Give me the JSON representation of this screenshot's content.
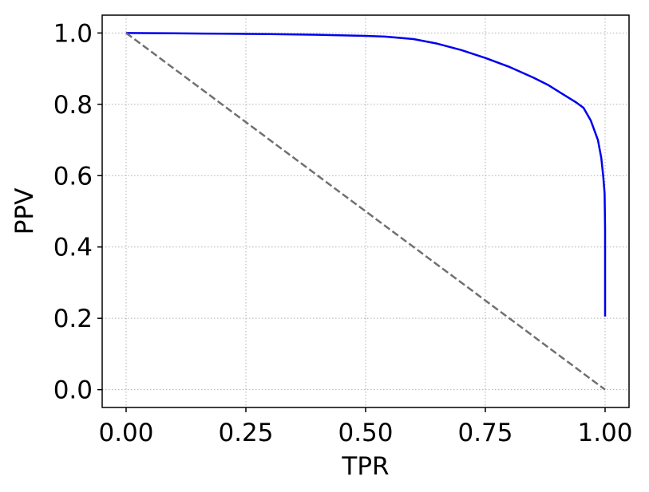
{
  "chart_data": {
    "type": "line",
    "xlabel": "TPR",
    "ylabel": "PPV",
    "xlim": [
      -0.05,
      1.05
    ],
    "ylim": [
      -0.05,
      1.05
    ],
    "xticks": [
      0.0,
      0.25,
      0.5,
      0.75,
      1.0
    ],
    "xtick_labels": [
      "0.00",
      "0.25",
      "0.50",
      "0.75",
      "1.00"
    ],
    "yticks": [
      0.0,
      0.2,
      0.4,
      0.6,
      0.8,
      1.0
    ],
    "ytick_labels": [
      "0.0",
      "0.2",
      "0.4",
      "0.6",
      "0.8",
      "1.0"
    ],
    "grid": true,
    "series": [
      {
        "color": "#0000ee",
        "style": "solid",
        "x": [
          0.0,
          0.1,
          0.2,
          0.3,
          0.4,
          0.5,
          0.54,
          0.6,
          0.65,
          0.7,
          0.75,
          0.8,
          0.85,
          0.88,
          0.91,
          0.94,
          0.955,
          0.97,
          0.985,
          0.992,
          0.996,
          0.999,
          1.0,
          1.0,
          1.0
        ],
        "y": [
          1.0,
          0.999,
          0.998,
          0.997,
          0.995,
          0.992,
          0.99,
          0.983,
          0.97,
          0.952,
          0.93,
          0.905,
          0.875,
          0.855,
          0.83,
          0.805,
          0.79,
          0.755,
          0.7,
          0.65,
          0.6,
          0.55,
          0.45,
          0.3,
          0.205
        ]
      },
      {
        "color": "#707070",
        "style": "dashed",
        "x": [
          0.0,
          1.0
        ],
        "y": [
          1.0,
          0.0
        ]
      }
    ]
  }
}
